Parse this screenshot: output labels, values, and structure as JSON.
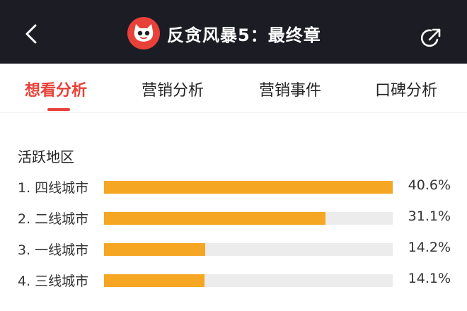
{
  "header": {
    "title": "反贪风暴5：最终章"
  },
  "tabs": [
    {
      "label": "想看分析",
      "active": true
    },
    {
      "label": "营销分析",
      "active": false
    },
    {
      "label": "营销事件",
      "active": false
    },
    {
      "label": "口碑分析",
      "active": false
    }
  ],
  "section": {
    "title": "活跃地区"
  },
  "rows": [
    {
      "label": "1. 四线城市",
      "value": "40.6%",
      "fraction": 1.0
    },
    {
      "label": "2. 二线城市",
      "value": "31.1%",
      "fraction": 0.766
    },
    {
      "label": "3. 一线城市",
      "value": "14.2%",
      "fraction": 0.35
    },
    {
      "label": "4. 三线城市",
      "value": "14.1%",
      "fraction": 0.347
    }
  ],
  "colors": {
    "header_bg": "#1c1c24",
    "accent": "#e8413a",
    "bar": "#f5a623",
    "track": "#ececec"
  },
  "icons": {
    "back": "chevron-left-icon",
    "logo": "cat-logo-icon",
    "share": "share-icon"
  }
}
